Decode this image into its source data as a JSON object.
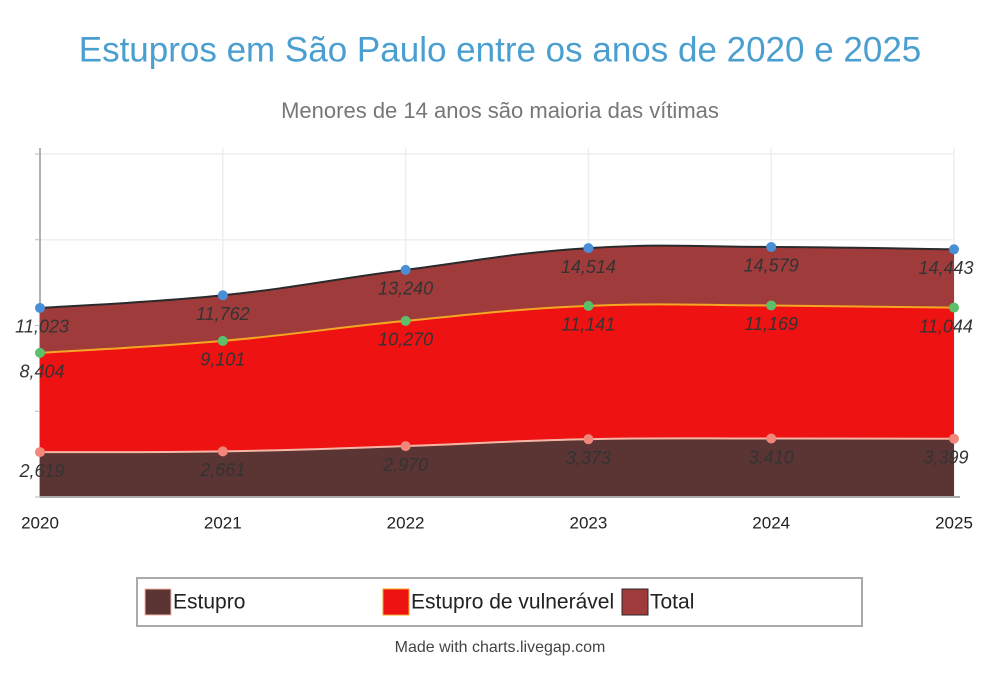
{
  "chart_data": {
    "type": "area",
    "title": "Estupros em São Paulo entre os anos de 2020 e 2025",
    "subtitle": "Menores de 14 anos são maioria das vítimas",
    "categories": [
      "2020",
      "2021",
      "2022",
      "2023",
      "2024",
      "2025"
    ],
    "series": [
      {
        "name": "Estupro",
        "color": "#5b3434",
        "line_color": "#f6b6a6",
        "marker_color": "#f2867a",
        "values": [
          2619,
          2661,
          2970,
          3373,
          3410,
          3399
        ],
        "value_labels": [
          "2,619",
          "2,661",
          "2,970",
          "3,373",
          "3,410",
          "3,399"
        ]
      },
      {
        "name": "Estupro de vulnerável",
        "color": "#ee1212",
        "line_color": "#f5a623",
        "marker_color": "#5cbf6a",
        "values": [
          8404,
          9101,
          10270,
          11141,
          11169,
          11044
        ],
        "value_labels": [
          "8,404",
          "9,101",
          "10,270",
          "11,141",
          "11,169",
          "11,044"
        ]
      },
      {
        "name": "Total",
        "color": "#a03b3b",
        "line_color": "#2a2a2a",
        "marker_color": "#4a8fd6",
        "values": [
          11023,
          11762,
          13240,
          14514,
          14579,
          14443
        ],
        "value_labels": [
          "11,023",
          "11,762",
          "13,240",
          "14,514",
          "14,579",
          "14,443"
        ]
      }
    ],
    "ylim": [
      0,
      20350
    ],
    "yticks": [
      0,
      5000,
      10000,
      15000,
      20000
    ],
    "grid": true,
    "credit": "Made with charts.livegap.com"
  }
}
